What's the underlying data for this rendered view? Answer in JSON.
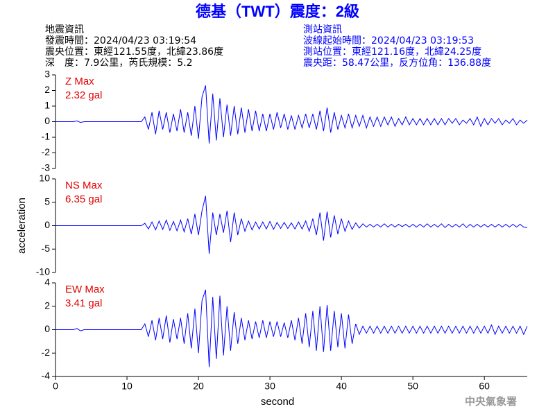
{
  "header": {
    "title": "德基（TWT）震度：2級",
    "left": [
      "地震資訊",
      "發震時間：2024/04/23 03:19:54",
      "震央位置：東經121.55度，北緯23.86度",
      "深　度：7.9公里，芮氏規模：5.2"
    ],
    "right": [
      "測站資訊",
      "波線起始時間：2024/04/23 03:19:53",
      "測站位置：東經121.16度，北緯24.25度",
      "震央距：58.47公里，反方位角：136.88度"
    ]
  },
  "footer": "中央氣象署",
  "chart_data": [
    {
      "type": "line",
      "label": "Z Max",
      "max_label": "2.32 gal",
      "color": "#0000ff",
      "xlim": [
        0,
        66
      ],
      "ylim": [
        -3,
        3
      ],
      "yticks": [
        -3,
        -2,
        -1,
        0,
        1,
        2,
        3
      ],
      "x": [
        0,
        0.5,
        1,
        1.5,
        2,
        2.5,
        3,
        3.5,
        4,
        4.5,
        5,
        5.5,
        6,
        6.5,
        7,
        7.5,
        8,
        8.5,
        9,
        9.5,
        10,
        10.5,
        11,
        11.5,
        12,
        12.5,
        13,
        13.5,
        14,
        14.5,
        15,
        15.5,
        16,
        16.5,
        17,
        17.5,
        18,
        18.5,
        19,
        19.5,
        20,
        20.5,
        21,
        21.5,
        22,
        22.5,
        23,
        23.5,
        24,
        24.5,
        25,
        25.5,
        26,
        26.5,
        27,
        27.5,
        28,
        28.5,
        29,
        29.5,
        30,
        30.5,
        31,
        31.5,
        32,
        32.5,
        33,
        33.5,
        34,
        34.5,
        35,
        35.5,
        36,
        36.5,
        37,
        37.5,
        38,
        38.5,
        39,
        39.5,
        40,
        40.5,
        41,
        41.5,
        42,
        42.5,
        43,
        43.5,
        44,
        44.5,
        45,
        45.5,
        46,
        46.5,
        47,
        47.5,
        48,
        48.5,
        49,
        49.5,
        50,
        50.5,
        51,
        51.5,
        52,
        52.5,
        53,
        53.5,
        54,
        54.5,
        55,
        55.5,
        56,
        56.5,
        57,
        57.5,
        58,
        58.5,
        59,
        59.5,
        60,
        60.5,
        61,
        61.5,
        62,
        62.5,
        63,
        63.5,
        64,
        64.5,
        65,
        65.5,
        66
      ],
      "values": [
        0,
        0,
        0,
        0,
        0,
        0,
        0.05,
        -0.05,
        0,
        0,
        0,
        0,
        0,
        0,
        0,
        0,
        0,
        0,
        0,
        0,
        0,
        0,
        0,
        0,
        0,
        0.3,
        -0.5,
        0.6,
        -0.8,
        0.7,
        -0.5,
        0.6,
        -0.7,
        0.5,
        -0.6,
        0.8,
        -0.7,
        0.6,
        -0.9,
        1.0,
        -1.1,
        1.6,
        2.32,
        -1.4,
        1.8,
        -1.2,
        1.5,
        -1.0,
        1.1,
        -0.9,
        1.0,
        -0.8,
        0.9,
        -0.7,
        0.8,
        -0.6,
        0.7,
        -0.6,
        0.5,
        -0.6,
        0.5,
        -0.5,
        0.6,
        -0.4,
        0.5,
        -0.5,
        0.4,
        -0.5,
        0.4,
        -0.4,
        0.5,
        -0.4,
        0.5,
        -0.5,
        0.7,
        -0.6,
        0.9,
        -0.7,
        0.6,
        -0.5,
        0.4,
        -0.4,
        0.5,
        -0.4,
        0.4,
        -0.3,
        0.4,
        -0.4,
        0.3,
        -0.3,
        0.3,
        -0.3,
        0.3,
        -0.2,
        0.3,
        -0.3,
        0.2,
        -0.2,
        0.3,
        -0.2,
        0.2,
        -0.2,
        0.2,
        -0.2,
        0.2,
        -0.2,
        0.2,
        -0.2,
        0.2,
        -0.2,
        0.2,
        -0.1,
        0.2,
        -0.2,
        0.1,
        -0.1,
        0.2,
        -0.2,
        0.3,
        -0.3,
        0.2,
        -0.2,
        0.2,
        -0.1,
        0.2,
        -0.2,
        0.1,
        -0.1,
        0.2,
        -0.2,
        0.1,
        -0.1,
        0.1
      ]
    },
    {
      "type": "line",
      "label": "NS Max",
      "max_label": "6.35 gal",
      "ylabel": "acceleration",
      "color": "#0000ff",
      "xlim": [
        0,
        66
      ],
      "ylim": [
        -10,
        10
      ],
      "yticks": [
        -10,
        -5,
        0,
        5,
        10
      ],
      "x": [
        0,
        0.5,
        1,
        1.5,
        2,
        2.5,
        3,
        3.5,
        4,
        4.5,
        5,
        5.5,
        6,
        6.5,
        7,
        7.5,
        8,
        8.5,
        9,
        9.5,
        10,
        10.5,
        11,
        11.5,
        12,
        12.5,
        13,
        13.5,
        14,
        14.5,
        15,
        15.5,
        16,
        16.5,
        17,
        17.5,
        18,
        18.5,
        19,
        19.5,
        20,
        20.5,
        21,
        21.5,
        22,
        22.5,
        23,
        23.5,
        24,
        24.5,
        25,
        25.5,
        26,
        26.5,
        27,
        27.5,
        28,
        28.5,
        29,
        29.5,
        30,
        30.5,
        31,
        31.5,
        32,
        32.5,
        33,
        33.5,
        34,
        34.5,
        35,
        35.5,
        36,
        36.5,
        37,
        37.5,
        38,
        38.5,
        39,
        39.5,
        40,
        40.5,
        41,
        41.5,
        42,
        42.5,
        43,
        43.5,
        44,
        44.5,
        45,
        45.5,
        46,
        46.5,
        47,
        47.5,
        48,
        48.5,
        49,
        49.5,
        50,
        50.5,
        51,
        51.5,
        52,
        52.5,
        53,
        53.5,
        54,
        54.5,
        55,
        55.5,
        56,
        56.5,
        57,
        57.5,
        58,
        58.5,
        59,
        59.5,
        60,
        60.5,
        61,
        61.5,
        62,
        62.5,
        63,
        63.5,
        64,
        64.5,
        65,
        65.5,
        66
      ],
      "values": [
        0,
        0,
        0,
        0,
        0,
        0,
        0,
        0,
        0,
        0,
        0,
        0,
        0,
        0,
        0,
        0,
        0,
        0,
        0,
        0,
        0,
        0,
        0,
        0,
        0,
        0.5,
        -0.7,
        0.8,
        -0.9,
        1.0,
        -0.8,
        1.2,
        -1.0,
        0.9,
        -1.1,
        1.2,
        -1.3,
        1.5,
        -1.8,
        2.5,
        -2.0,
        3.2,
        6.35,
        -6.0,
        2.8,
        -2.0,
        2.5,
        -1.5,
        3.2,
        -3.5,
        2.8,
        -2.0,
        1.5,
        -1.2,
        1.0,
        -0.9,
        0.8,
        -0.7,
        0.8,
        -0.7,
        0.9,
        -0.8,
        0.7,
        -0.6,
        0.7,
        -0.6,
        0.6,
        -0.7,
        0.8,
        -0.7,
        1.0,
        -1.2,
        1.5,
        -2.0,
        2.8,
        -3.2,
        3.0,
        -2.5,
        2.2,
        -1.8,
        1.5,
        -1.2,
        1.0,
        -0.8,
        0.6,
        -0.5,
        0.4,
        -0.3,
        0.3,
        -0.3,
        0.3,
        -0.3,
        0.4,
        -0.3,
        0.3,
        -0.3,
        0.3,
        -0.2,
        0.3,
        -0.3,
        0.3,
        -0.3,
        0.3,
        -0.3,
        0.4,
        -0.3,
        0.3,
        -0.3,
        0.4,
        -0.4,
        0.3,
        -0.3,
        0.3,
        -0.3,
        0.4,
        -0.4,
        0.3,
        -0.3,
        0.3,
        -0.3,
        0.3,
        -0.3,
        0.3,
        -0.3,
        0.3,
        -0.3,
        0.3,
        -0.3,
        0.3,
        -0.3,
        0.3,
        -0.3,
        -0.4
      ]
    },
    {
      "type": "line",
      "label": "EW Max",
      "max_label": "3.41 gal",
      "xlabel": "second",
      "color": "#0000ff",
      "xlim": [
        0,
        66
      ],
      "xticks": [
        0,
        10,
        20,
        30,
        40,
        50,
        60
      ],
      "ylim": [
        -4,
        4
      ],
      "yticks": [
        -4,
        -2,
        0,
        2,
        4
      ],
      "x": [
        0,
        0.5,
        1,
        1.5,
        2,
        2.5,
        3,
        3.5,
        4,
        4.5,
        5,
        5.5,
        6,
        6.5,
        7,
        7.5,
        8,
        8.5,
        9,
        9.5,
        10,
        10.5,
        11,
        11.5,
        12,
        12.5,
        13,
        13.5,
        14,
        14.5,
        15,
        15.5,
        16,
        16.5,
        17,
        17.5,
        18,
        18.5,
        19,
        19.5,
        20,
        20.5,
        21,
        21.5,
        22,
        22.5,
        23,
        23.5,
        24,
        24.5,
        25,
        25.5,
        26,
        26.5,
        27,
        27.5,
        28,
        28.5,
        29,
        29.5,
        30,
        30.5,
        31,
        31.5,
        32,
        32.5,
        33,
        33.5,
        34,
        34.5,
        35,
        35.5,
        36,
        36.5,
        37,
        37.5,
        38,
        38.5,
        39,
        39.5,
        40,
        40.5,
        41,
        41.5,
        42,
        42.5,
        43,
        43.5,
        44,
        44.5,
        45,
        45.5,
        46,
        46.5,
        47,
        47.5,
        48,
        48.5,
        49,
        49.5,
        50,
        50.5,
        51,
        51.5,
        52,
        52.5,
        53,
        53.5,
        54,
        54.5,
        55,
        55.5,
        56,
        56.5,
        57,
        57.5,
        58,
        58.5,
        59,
        59.5,
        60,
        60.5,
        61,
        61.5,
        62,
        62.5,
        63,
        63.5,
        64,
        64.5,
        65,
        65.5,
        66
      ],
      "values": [
        0,
        0,
        0,
        0,
        0,
        0,
        0.1,
        -0.1,
        0,
        0,
        0,
        0,
        0,
        0,
        0,
        0,
        0,
        0,
        0,
        0,
        0,
        0,
        0,
        0,
        0,
        0.5,
        -0.6,
        0.8,
        -0.9,
        1.0,
        -0.8,
        1.2,
        -1.1,
        0.9,
        -0.8,
        1.0,
        -1.2,
        1.4,
        -1.6,
        1.8,
        -2.0,
        2.5,
        3.41,
        -3.2,
        2.8,
        -2.5,
        2.9,
        -2.2,
        2.0,
        -1.8,
        1.5,
        -1.2,
        1.0,
        -0.9,
        0.8,
        -0.8,
        0.7,
        -0.7,
        0.8,
        -0.7,
        0.7,
        -0.6,
        0.7,
        -0.6,
        0.6,
        -0.7,
        0.8,
        -0.9,
        1.0,
        -1.2,
        1.4,
        -1.5,
        1.6,
        -1.8,
        2.0,
        -1.9,
        2.1,
        -1.8,
        1.6,
        -1.5,
        1.4,
        -1.6,
        1.3,
        -1.2,
        0.5,
        -0.4,
        0.3,
        -0.3,
        0.3,
        -0.3,
        0.3,
        -0.3,
        0.3,
        -0.3,
        0.3,
        -0.3,
        0.3,
        -0.3,
        0.3,
        -0.3,
        0.3,
        -0.3,
        0.3,
        -0.3,
        0.3,
        -0.3,
        0.3,
        -0.3,
        0.3,
        -0.3,
        0.3,
        -0.3,
        0.3,
        -0.3,
        0.3,
        -0.3,
        0.3,
        -0.3,
        0.3,
        -0.3,
        0.3,
        -0.3,
        0.4,
        -0.4,
        0.3,
        -0.3,
        0.3,
        -0.3,
        0.3,
        -0.3,
        0.3,
        -0.4,
        0.3
      ]
    }
  ]
}
